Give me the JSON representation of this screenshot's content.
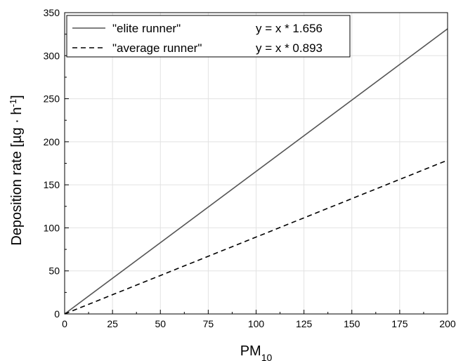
{
  "chart_data": {
    "type": "line",
    "xlabel": "PM",
    "xlabel_sub": "10",
    "ylabel_main": "Deposition rate [µg · h",
    "ylabel_sup": "-1",
    "ylabel_end": "]",
    "xlim": [
      0,
      200
    ],
    "ylim": [
      0,
      350
    ],
    "xticks": [
      0,
      25,
      50,
      75,
      100,
      125,
      150,
      175,
      200
    ],
    "yticks": [
      0,
      50,
      100,
      150,
      200,
      250,
      300,
      350
    ],
    "grid": true,
    "legend_position": "top-left",
    "series": [
      {
        "name": "\"elite runner\"",
        "equation": "y = x * 1.656",
        "slope": 1.656,
        "x": [
          0,
          200
        ],
        "y": [
          0,
          331.2
        ],
        "color": "#555555",
        "dash": "solid"
      },
      {
        "name": "\"average runner\"",
        "equation": "y = x * 0.893",
        "slope": 0.893,
        "x": [
          0,
          200
        ],
        "y": [
          0,
          178.6
        ],
        "color": "#000000",
        "dash": "dashed"
      }
    ]
  }
}
